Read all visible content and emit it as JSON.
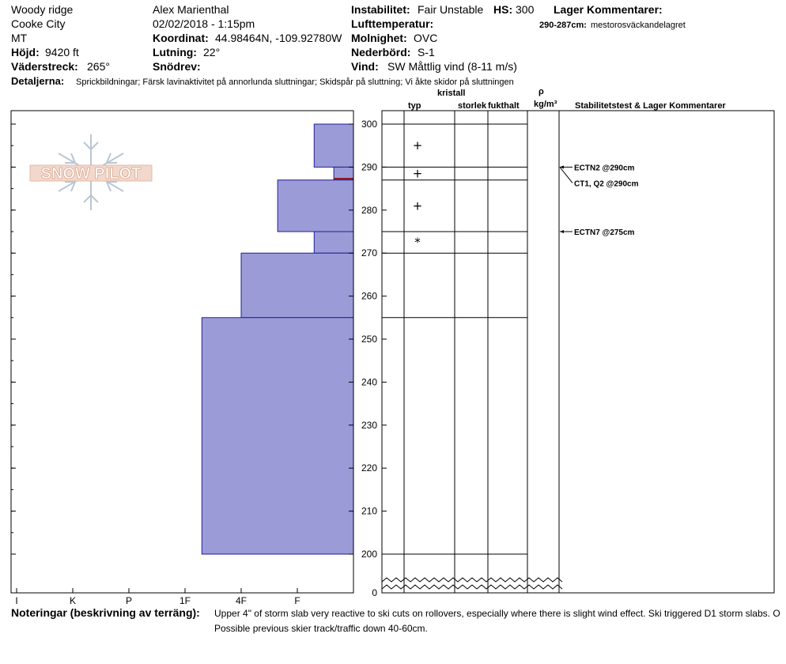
{
  "header": {
    "location": "Woody ridge",
    "city": "Cooke City",
    "state": "MT",
    "elevation_label": "Höjd:",
    "elevation_value": "9420 ft",
    "aspect_label": "Väderstreck:",
    "aspect_value": "265°",
    "observer": "Alex Marienthal",
    "datetime": "02/02/2018 - 1:15pm",
    "coord_label": "Koordinat:",
    "coord_value": "44.98464N, -109.92780W",
    "slope_label": "Lutning:",
    "slope_value": "22°",
    "drift_label": "Snödrev:",
    "instability_label": "Instabilitet:",
    "instability_value": "Fair Unstable",
    "hs_label": "HS:",
    "hs_value": "300",
    "airtemp_label": "Lufttemperatur:",
    "cloud_label": "Molnighet:",
    "cloud_value": "OVC",
    "precip_label": "Nederbörd:",
    "precip_value": "S-1",
    "wind_label": "Vind:",
    "wind_value": "SW  Måttlig vind (8-11 m/s)",
    "layer_comments_label": "Lager Kommentarer:",
    "layer_comment_range": "290-287cm:",
    "layer_comment_text": "mestorosväckandelagret",
    "details_label": "Detaljerna:",
    "details_value": "Sprickbildningar;  Färsk lavinaktivitet på annorlunda sluttningar;  Skidspår på sluttning;  Vi åkte skidor på sluttningen"
  },
  "logo": {
    "text": "SNOW PILOT"
  },
  "columns": {
    "typ": "typ",
    "kristall": "kristall",
    "storlek": "storlek",
    "fukthalt": "fukthalt",
    "rho": "ρ",
    "density_unit": "kg/m³",
    "stability": "Stabilitetstest & Lager Kommentarer"
  },
  "notes": {
    "label": "Noteringar (beskrivning av terräng):",
    "line1": "Upper 4\" of storm slab very reactive to ski cuts on rollovers, especially where there is slight wind effect. Ski triggered D1 storm slabs. O",
    "line2": "Possible previous skier track/traffic down 40-60cm."
  },
  "chart_data": {
    "type": "bar",
    "hardness_ticks": [
      "I",
      "K",
      "P",
      "1F",
      "4F",
      "F"
    ],
    "depth_ticks": [
      0,
      200,
      210,
      220,
      230,
      240,
      250,
      260,
      270,
      280,
      290,
      300
    ],
    "depth_range": [
      200,
      300
    ],
    "hardness_scale_note": "hardness index: F=1, 4F=2, 1F=3, P=4, K=5, I=6",
    "layers": [
      {
        "top": 300,
        "bottom": 290,
        "hardness": "F",
        "hardness_index": 0.7
      },
      {
        "top": 290,
        "bottom": 287,
        "hardness": "F-",
        "hardness_index": 0.35
      },
      {
        "top": 287,
        "bottom": 275,
        "hardness": "4F",
        "hardness_index": 1.35
      },
      {
        "top": 275,
        "bottom": 270,
        "hardness": "F",
        "hardness_index": 0.7
      },
      {
        "top": 270,
        "bottom": 255,
        "hardness": "4F+",
        "hardness_index": 2.0
      },
      {
        "top": 255,
        "bottom": 200,
        "hardness": "1F",
        "hardness_index": 2.7
      }
    ],
    "crystal_symbols": [
      {
        "depth": 295,
        "symbol": "+"
      },
      {
        "depth": 288.5,
        "symbol": "+"
      },
      {
        "depth": 281,
        "symbol": "+"
      },
      {
        "depth": 272.5,
        "symbol": "*"
      }
    ],
    "highlight_layer": {
      "top": 287.5,
      "bottom": 287,
      "color": "#8b1a2b"
    },
    "stability_tests": [
      {
        "depth": 290,
        "label": "ECTN2 @290cm"
      },
      {
        "depth": 290,
        "label": "CT1, Q2 @290cm"
      },
      {
        "depth": 275,
        "label": "ECTN7 @275cm"
      }
    ],
    "colors": {
      "layer_fill": "#9b9bd7",
      "layer_stroke": "#1f1f99"
    }
  }
}
